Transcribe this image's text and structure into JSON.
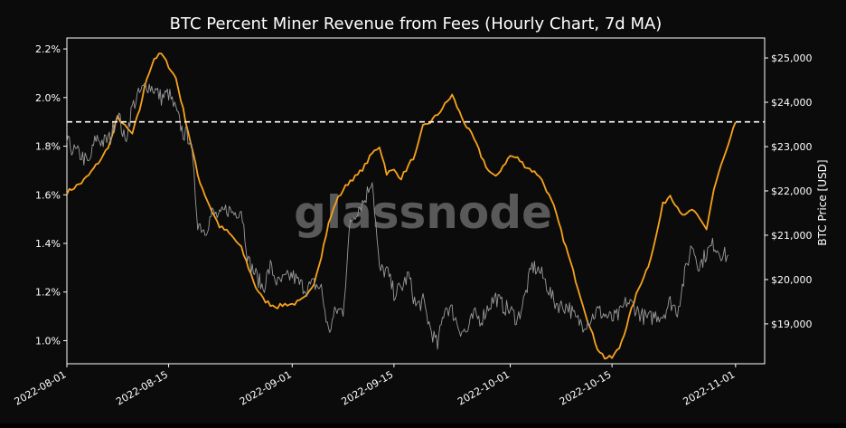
{
  "chart_data": {
    "type": "line",
    "title": "BTC Percent Miner Revenue from Fees (Hourly Chart, 7d MA)",
    "watermark": "glassnode",
    "xlabel": "",
    "ylabel_left": "",
    "ylabel_right": "BTC Price [USD]",
    "x_ticks": [
      "2022-08-01",
      "2022-08-15",
      "2022-09-01",
      "2022-09-15",
      "2022-10-01",
      "2022-10-15",
      "2022-11-01"
    ],
    "y_left_ticks": [
      "1.0%",
      "1.2%",
      "1.4%",
      "1.6%",
      "1.8%",
      "2.0%",
      "2.2%"
    ],
    "y_right_ticks": [
      "$19,000",
      "$20,000",
      "$21,000",
      "$22,000",
      "$23,000",
      "$24,000",
      "$25,000"
    ],
    "ylim_left": [
      0.905,
      2.245
    ],
    "ylim_right": [
      18100,
      25450
    ],
    "xlim": [
      "2022-08-01",
      "2022-11-05"
    ],
    "grid": false,
    "reference_line": {
      "value": 1.9,
      "axis": "left",
      "style": "dashed",
      "color": "#ffffff"
    },
    "series": [
      {
        "axis": "left",
        "color": "#f7a21b",
        "points": [
          [
            "2022-08-01",
            1.61
          ],
          [
            "2022-08-02",
            1.63
          ],
          [
            "2022-08-03",
            1.65
          ],
          [
            "2022-08-04",
            1.68
          ],
          [
            "2022-08-05",
            1.72
          ],
          [
            "2022-08-06",
            1.76
          ],
          [
            "2022-08-07",
            1.82
          ],
          [
            "2022-08-08",
            1.92
          ],
          [
            "2022-08-09",
            1.88
          ],
          [
            "2022-08-10",
            1.85
          ],
          [
            "2022-08-11",
            1.95
          ],
          [
            "2022-08-12",
            2.08
          ],
          [
            "2022-08-13",
            2.16
          ],
          [
            "2022-08-14",
            2.18
          ],
          [
            "2022-08-15",
            2.13
          ],
          [
            "2022-08-16",
            2.08
          ],
          [
            "2022-08-17",
            1.95
          ],
          [
            "2022-08-18",
            1.82
          ],
          [
            "2022-08-19",
            1.68
          ],
          [
            "2022-08-20",
            1.6
          ],
          [
            "2022-08-21",
            1.53
          ],
          [
            "2022-08-22",
            1.47
          ],
          [
            "2022-08-23",
            1.45
          ],
          [
            "2022-08-24",
            1.42
          ],
          [
            "2022-08-25",
            1.38
          ],
          [
            "2022-08-26",
            1.3
          ],
          [
            "2022-08-27",
            1.22
          ],
          [
            "2022-08-28",
            1.17
          ],
          [
            "2022-08-29",
            1.15
          ],
          [
            "2022-08-30",
            1.14
          ],
          [
            "2022-08-31",
            1.15
          ],
          [
            "2022-09-01",
            1.15
          ],
          [
            "2022-09-02",
            1.16
          ],
          [
            "2022-09-03",
            1.18
          ],
          [
            "2022-09-04",
            1.24
          ],
          [
            "2022-09-05",
            1.35
          ],
          [
            "2022-09-06",
            1.48
          ],
          [
            "2022-09-07",
            1.57
          ],
          [
            "2022-09-08",
            1.62
          ],
          [
            "2022-09-09",
            1.66
          ],
          [
            "2022-09-10",
            1.68
          ],
          [
            "2022-09-11",
            1.72
          ],
          [
            "2022-09-12",
            1.77
          ],
          [
            "2022-09-13",
            1.8
          ],
          [
            "2022-09-14",
            1.69
          ],
          [
            "2022-09-15",
            1.7
          ],
          [
            "2022-09-16",
            1.67
          ],
          [
            "2022-09-17",
            1.72
          ],
          [
            "2022-09-18",
            1.77
          ],
          [
            "2022-09-19",
            1.88
          ],
          [
            "2022-09-20",
            1.9
          ],
          [
            "2022-09-21",
            1.93
          ],
          [
            "2022-09-22",
            1.97
          ],
          [
            "2022-09-23",
            2.01
          ],
          [
            "2022-09-24",
            1.94
          ],
          [
            "2022-09-25",
            1.88
          ],
          [
            "2022-09-26",
            1.83
          ],
          [
            "2022-09-27",
            1.76
          ],
          [
            "2022-09-28",
            1.7
          ],
          [
            "2022-09-29",
            1.67
          ],
          [
            "2022-09-30",
            1.72
          ],
          [
            "2022-10-01",
            1.76
          ],
          [
            "2022-10-02",
            1.75
          ],
          [
            "2022-10-03",
            1.72
          ],
          [
            "2022-10-04",
            1.7
          ],
          [
            "2022-10-05",
            1.68
          ],
          [
            "2022-10-06",
            1.62
          ],
          [
            "2022-10-07",
            1.55
          ],
          [
            "2022-10-08",
            1.45
          ],
          [
            "2022-10-09",
            1.35
          ],
          [
            "2022-10-10",
            1.25
          ],
          [
            "2022-10-11",
            1.15
          ],
          [
            "2022-10-12",
            1.05
          ],
          [
            "2022-10-13",
            0.97
          ],
          [
            "2022-10-14",
            0.93
          ],
          [
            "2022-10-15",
            0.93
          ],
          [
            "2022-10-16",
            0.97
          ],
          [
            "2022-10-17",
            1.06
          ],
          [
            "2022-10-18",
            1.16
          ],
          [
            "2022-10-19",
            1.24
          ],
          [
            "2022-10-20",
            1.31
          ],
          [
            "2022-10-21",
            1.42
          ],
          [
            "2022-10-22",
            1.56
          ],
          [
            "2022-10-23",
            1.6
          ],
          [
            "2022-10-24",
            1.55
          ],
          [
            "2022-10-25",
            1.51
          ],
          [
            "2022-10-26",
            1.54
          ],
          [
            "2022-10-27",
            1.5
          ],
          [
            "2022-10-28",
            1.46
          ],
          [
            "2022-10-29",
            1.62
          ],
          [
            "2022-10-30",
            1.72
          ],
          [
            "2022-10-31",
            1.8
          ],
          [
            "2022-11-01",
            1.9
          ]
        ]
      },
      {
        "axis": "right",
        "color": "#9a9a9a",
        "points": [
          [
            "2022-08-01",
            23100
          ],
          [
            "2022-08-02",
            22900
          ],
          [
            "2022-08-03",
            22800
          ],
          [
            "2022-08-04",
            22600
          ],
          [
            "2022-08-05",
            23200
          ],
          [
            "2022-08-06",
            23100
          ],
          [
            "2022-08-07",
            23200
          ],
          [
            "2022-08-08",
            23800
          ],
          [
            "2022-08-09",
            23100
          ],
          [
            "2022-08-10",
            23900
          ],
          [
            "2022-08-11",
            24200
          ],
          [
            "2022-08-12",
            24400
          ],
          [
            "2022-08-13",
            24300
          ],
          [
            "2022-08-14",
            24100
          ],
          [
            "2022-08-15",
            24200
          ],
          [
            "2022-08-16",
            23800
          ],
          [
            "2022-08-17",
            23300
          ],
          [
            "2022-08-18",
            23200
          ],
          [
            "2022-08-19",
            21300
          ],
          [
            "2022-08-20",
            21100
          ],
          [
            "2022-08-21",
            21500
          ],
          [
            "2022-08-22",
            21400
          ],
          [
            "2022-08-23",
            21600
          ],
          [
            "2022-08-24",
            21500
          ],
          [
            "2022-08-25",
            21600
          ],
          [
            "2022-08-26",
            20400
          ],
          [
            "2022-08-27",
            20100
          ],
          [
            "2022-08-28",
            19800
          ],
          [
            "2022-08-29",
            20300
          ],
          [
            "2022-08-30",
            19900
          ],
          [
            "2022-08-31",
            20000
          ],
          [
            "2022-09-01",
            20100
          ],
          [
            "2022-09-02",
            19900
          ],
          [
            "2022-09-03",
            19800
          ],
          [
            "2022-09-04",
            19900
          ],
          [
            "2022-09-05",
            19800
          ],
          [
            "2022-09-06",
            18800
          ],
          [
            "2022-09-07",
            19300
          ],
          [
            "2022-09-08",
            19300
          ],
          [
            "2022-09-09",
            21300
          ],
          [
            "2022-09-10",
            21600
          ],
          [
            "2022-09-11",
            21800
          ],
          [
            "2022-09-12",
            22300
          ],
          [
            "2022-09-13",
            20200
          ],
          [
            "2022-09-14",
            20200
          ],
          [
            "2022-09-15",
            19700
          ],
          [
            "2022-09-16",
            19800
          ],
          [
            "2022-09-17",
            20100
          ],
          [
            "2022-09-18",
            19400
          ],
          [
            "2022-09-19",
            19500
          ],
          [
            "2022-09-20",
            18900
          ],
          [
            "2022-09-21",
            18500
          ],
          [
            "2022-09-22",
            19400
          ],
          [
            "2022-09-23",
            19300
          ],
          [
            "2022-09-24",
            18900
          ],
          [
            "2022-09-25",
            18800
          ],
          [
            "2022-09-26",
            19200
          ],
          [
            "2022-09-27",
            19100
          ],
          [
            "2022-09-28",
            19400
          ],
          [
            "2022-09-29",
            19600
          ],
          [
            "2022-09-30",
            19400
          ],
          [
            "2022-10-01",
            19300
          ],
          [
            "2022-10-02",
            19100
          ],
          [
            "2022-10-03",
            19600
          ],
          [
            "2022-10-04",
            20300
          ],
          [
            "2022-10-05",
            20200
          ],
          [
            "2022-10-06",
            19900
          ],
          [
            "2022-10-07",
            19500
          ],
          [
            "2022-10-08",
            19400
          ],
          [
            "2022-10-09",
            19400
          ],
          [
            "2022-10-10",
            19100
          ],
          [
            "2022-10-11",
            19000
          ],
          [
            "2022-10-12",
            19100
          ],
          [
            "2022-10-13",
            19300
          ],
          [
            "2022-10-14",
            19200
          ],
          [
            "2022-10-15",
            19100
          ],
          [
            "2022-10-16",
            19200
          ],
          [
            "2022-10-17",
            19500
          ],
          [
            "2022-10-18",
            19400
          ],
          [
            "2022-10-19",
            19200
          ],
          [
            "2022-10-20",
            19100
          ],
          [
            "2022-10-21",
            19200
          ],
          [
            "2022-10-22",
            19200
          ],
          [
            "2022-10-23",
            19500
          ],
          [
            "2022-10-24",
            19300
          ],
          [
            "2022-10-25",
            20100
          ],
          [
            "2022-10-26",
            20800
          ],
          [
            "2022-10-27",
            20300
          ],
          [
            "2022-10-28",
            20600
          ],
          [
            "2022-10-29",
            20800
          ],
          [
            "2022-10-30",
            20600
          ],
          [
            "2022-10-31",
            20500
          ]
        ]
      }
    ]
  }
}
